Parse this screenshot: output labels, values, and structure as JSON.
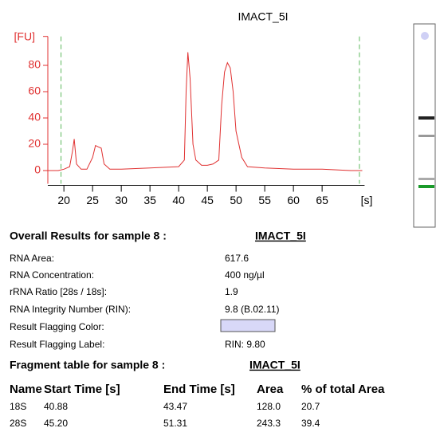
{
  "chart_data": {
    "type": "line",
    "title": "IMACT_5I",
    "ylabel": "[FU]",
    "xlabel": "[s]",
    "x": [
      17,
      19,
      20,
      21,
      21.5,
      21.8,
      22.2,
      23,
      24,
      25,
      25.5,
      26,
      26.5,
      27,
      28,
      30,
      35,
      40,
      41,
      41.3,
      41.6,
      42,
      42.5,
      43,
      44,
      45,
      46,
      47,
      47.5,
      48,
      48.5,
      49,
      49.5,
      50,
      51,
      52,
      55,
      60,
      65,
      70,
      72
    ],
    "values": [
      0,
      0,
      1,
      3,
      15,
      24,
      5,
      1,
      1,
      10,
      19,
      18,
      17,
      5,
      1,
      1,
      2,
      3,
      8,
      60,
      90,
      70,
      20,
      8,
      4,
      4,
      5,
      8,
      50,
      75,
      82,
      78,
      60,
      30,
      10,
      3,
      2,
      1,
      1,
      0,
      0
    ],
    "color": "#e03030",
    "axis_color": "#e03030",
    "markers": [
      19.5,
      71.5
    ],
    "marker_color": "#5cb85c",
    "xlim": [
      17.2,
      72.4
    ],
    "xticks": [
      20,
      25,
      30,
      35,
      40,
      45,
      50,
      55,
      60,
      65
    ],
    "ylim": [
      -10,
      102
    ],
    "yticks": [
      0,
      20,
      40,
      60,
      80
    ]
  },
  "overall": {
    "title": "Overall Results for sample 8 :",
    "sample": "IMACT_5I",
    "rows": [
      {
        "label": "RNA Area:",
        "value": "617.6"
      },
      {
        "label": "RNA Concentration:",
        "value": "400 ng/µl"
      },
      {
        "label": "rRNA Ratio [28s / 18s]:",
        "value": "1.9"
      },
      {
        "label": "RNA Integrity Number (RIN):",
        "value": "9.8   (B.02.11)"
      },
      {
        "label": "Result Flagging Color:",
        "color": "#d8d8f8"
      },
      {
        "label": "Result Flagging Label:",
        "value": "RIN: 9.80"
      }
    ]
  },
  "fragments": {
    "title": "Fragment table for sample 8 :",
    "sample": "IMACT_5I",
    "columns": [
      "Name",
      "Start Time [s]",
      "End Time [s]",
      "Area",
      "% of total Area"
    ],
    "rows": [
      [
        "18S",
        "40.88",
        "43.47",
        "128.0",
        "20.7"
      ],
      [
        "28S",
        "45.20",
        "51.31",
        "243.3",
        "39.4"
      ]
    ]
  }
}
